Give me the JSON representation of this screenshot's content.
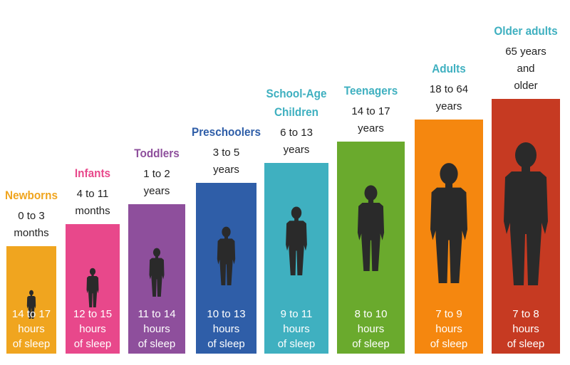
{
  "chart_data": {
    "type": "bar",
    "bar_color_meaning": "one bar per age group",
    "categories": [
      {
        "name_lines": [
          "Newborns"
        ],
        "age_lines": [
          "0 to 3",
          "months"
        ],
        "sleep_lines": [
          "14 to 17",
          "hours",
          "of sleep"
        ],
        "color": "#f0a51f",
        "title_color": "#f0a51f",
        "level": 1
      },
      {
        "name_lines": [
          "Infants"
        ],
        "age_lines": [
          "4 to 11",
          "months"
        ],
        "sleep_lines": [
          "12 to 15",
          "hours",
          "of sleep"
        ],
        "color": "#e8488b",
        "title_color": "#e8488b",
        "level": 2
      },
      {
        "name_lines": [
          "Toddlers"
        ],
        "age_lines": [
          "1 to 2",
          "years"
        ],
        "sleep_lines": [
          "11 to 14",
          "hours",
          "of sleep"
        ],
        "color": "#8e4f9c",
        "title_color": "#8e4f9c",
        "level": 3
      },
      {
        "name_lines": [
          "Preschoolers"
        ],
        "age_lines": [
          "3 to 5",
          "years"
        ],
        "sleep_lines": [
          "10 to 13",
          "hours",
          "of sleep"
        ],
        "color": "#2f5ea8",
        "title_color": "#2f5ea8",
        "level": 4
      },
      {
        "name_lines": [
          "School-Age",
          "Children"
        ],
        "age_lines": [
          "6 to 13",
          "years"
        ],
        "sleep_lines": [
          "9 to 11",
          "hours",
          "of sleep"
        ],
        "color": "#3fb0c0",
        "title_color": "#3fb0c0",
        "level": 5
      },
      {
        "name_lines": [
          "Teenagers"
        ],
        "age_lines": [
          "14 to 17",
          "years"
        ],
        "sleep_lines": [
          "8 to 10",
          "hours",
          "of sleep"
        ],
        "color": "#6aaa2d",
        "title_color": "#3fb0c0",
        "level": 6
      },
      {
        "name_lines": [
          "Adults"
        ],
        "age_lines": [
          "18 to 64",
          "years"
        ],
        "sleep_lines": [
          "7 to 9",
          "hours",
          "of sleep"
        ],
        "color": "#f5870f",
        "title_color": "#3fb0c0",
        "level": 7
      },
      {
        "name_lines": [
          "Older adults"
        ],
        "age_lines": [
          "65 years",
          "and",
          "older"
        ],
        "sleep_lines": [
          "7 to 8",
          "hours",
          "of sleep"
        ],
        "color": "#c63a22",
        "title_color": "#3fb0c0",
        "level": 8
      }
    ],
    "silhouette_color": "#2a2a2a"
  }
}
